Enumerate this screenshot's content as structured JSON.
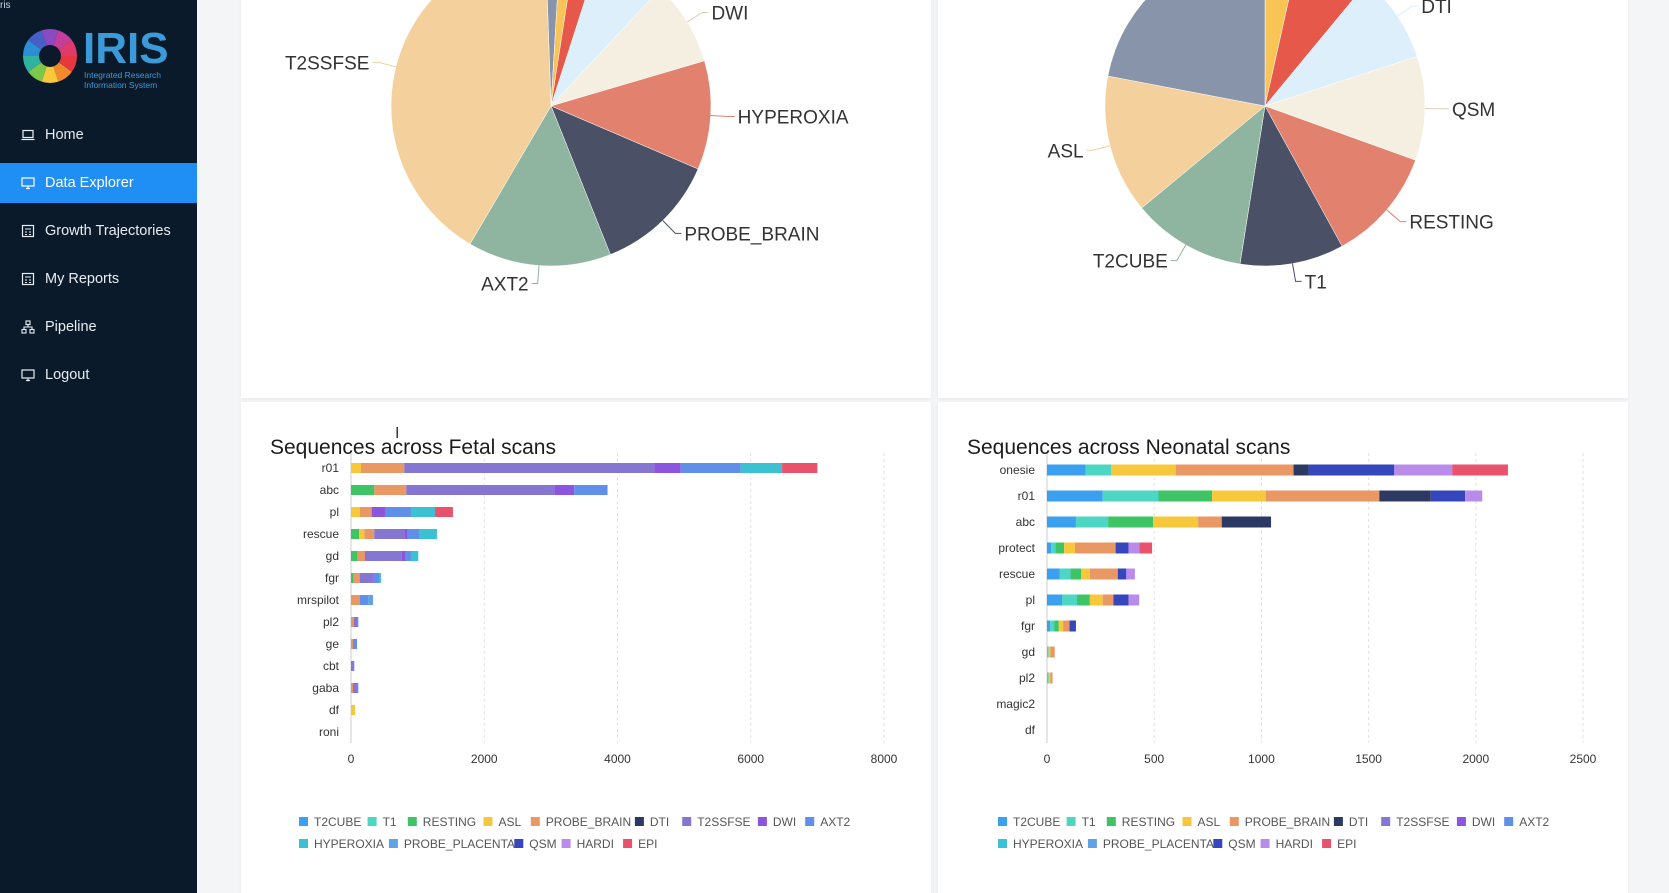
{
  "app": {
    "corner_text": "ris",
    "logo_word": "IRIS",
    "logo_tagline_1": "Integrated Research",
    "logo_tagline_2": "Information System"
  },
  "sidebar": {
    "items": [
      {
        "label": "Home",
        "icon": "laptop-icon",
        "active": false
      },
      {
        "label": "Data Explorer",
        "icon": "monitor-icon",
        "active": true
      },
      {
        "label": "Growth Trajectories",
        "icon": "calculator-icon",
        "active": false
      },
      {
        "label": "My Reports",
        "icon": "calculator-icon",
        "active": false
      },
      {
        "label": "Pipeline",
        "icon": "pipeline-icon",
        "active": false
      },
      {
        "label": "Logout",
        "icon": "monitor-icon",
        "active": false
      }
    ]
  },
  "colors": {
    "sidebar_bg": "#0a1a2a",
    "active": "#1f8ff5"
  },
  "legend_items": [
    "T2CUBE",
    "T1",
    "RESTING",
    "ASL",
    "PROBE_BRAIN",
    "DTI",
    "T2SSFSE",
    "DWI",
    "AXT2",
    "HYPEROXIA",
    "PROBE_PLACENTA",
    "QSM",
    "HARDI",
    "EPI"
  ],
  "legend_colors": [
    "#3ba0f0",
    "#4ed6c4",
    "#3fc465",
    "#f8c83c",
    "#e99763",
    "#2c3a63",
    "#8576d2",
    "#8b55e0",
    "#5f8fe8",
    "#3cc1d2",
    "#5fa2e6",
    "#3646bc",
    "#b98cec",
    "#e8526c"
  ],
  "chart_data": [
    {
      "type": "pie",
      "title": "",
      "slices": [
        {
          "label": "",
          "value": 1.5,
          "color": "#8794aa"
        },
        {
          "label": "",
          "value": 1.5,
          "color": "#f8c456"
        },
        {
          "label": "",
          "value": 2.5,
          "color": "#e5584a"
        },
        {
          "label": "",
          "value": 7,
          "color": "#dceffb"
        },
        {
          "label": "DWI",
          "value": 8.5,
          "color": "#f4efe1"
        },
        {
          "label": "HYPEROXIA",
          "value": 11,
          "color": "#e2826e"
        },
        {
          "label": "PROBE_BRAIN",
          "value": 12.5,
          "color": "#4a5065"
        },
        {
          "label": "AXT2",
          "value": 14.5,
          "color": "#8fb5a0"
        },
        {
          "label": "T2SSFSE",
          "value": 41,
          "color": "#f3d09c"
        }
      ]
    },
    {
      "type": "pie",
      "title": "",
      "slices": [
        {
          "label": "",
          "value": 3.5,
          "color": "#f8c456"
        },
        {
          "label": "",
          "value": 7.5,
          "color": "#e5584a"
        },
        {
          "label": "DTI",
          "value": 9,
          "color": "#dceffb"
        },
        {
          "label": "QSM",
          "value": 10.5,
          "color": "#f4efe1"
        },
        {
          "label": "RESTING",
          "value": 11.5,
          "color": "#e2826e"
        },
        {
          "label": "T1",
          "value": 10.5,
          "color": "#4a5065"
        },
        {
          "label": "T2CUBE",
          "value": 11.5,
          "color": "#8fb5a0"
        },
        {
          "label": "ASL",
          "value": 14,
          "color": "#f3d09c"
        },
        {
          "label": "",
          "value": 22,
          "color": "#8794aa"
        }
      ]
    },
    {
      "type": "bar",
      "title": "Sequences across Fetal scans",
      "orientation": "horizontal",
      "stacked": true,
      "categories": [
        "r01",
        "abc",
        "pl",
        "rescue",
        "gd",
        "fgr",
        "mrspilot",
        "pl2",
        "ge",
        "cbt",
        "gaba",
        "df",
        "roni"
      ],
      "xlim": [
        0,
        8000
      ],
      "xticks": [
        0,
        2000,
        4000,
        6000,
        8000
      ],
      "series": [
        {
          "name": "T2CUBE",
          "values": [
            0,
            0,
            0,
            0,
            0,
            0,
            0,
            0,
            0,
            0,
            0,
            0,
            0
          ]
        },
        {
          "name": "T1",
          "values": [
            0,
            0,
            0,
            0,
            0,
            0,
            0,
            0,
            0,
            0,
            0,
            0,
            0
          ]
        },
        {
          "name": "RESTING",
          "values": [
            0,
            350,
            0,
            120,
            100,
            40,
            0,
            0,
            0,
            0,
            0,
            0,
            0
          ]
        },
        {
          "name": "ASL",
          "values": [
            150,
            0,
            130,
            80,
            0,
            0,
            0,
            0,
            0,
            0,
            0,
            60,
            0
          ]
        },
        {
          "name": "PROBE_BRAIN",
          "values": [
            650,
            480,
            180,
            150,
            110,
            90,
            130,
            40,
            30,
            0,
            30,
            0,
            0
          ]
        },
        {
          "name": "DTI",
          "values": [
            0,
            0,
            0,
            0,
            0,
            0,
            0,
            0,
            0,
            0,
            0,
            0,
            0
          ]
        },
        {
          "name": "T2SSFSE",
          "values": [
            3750,
            2220,
            0,
            450,
            550,
            190,
            0,
            50,
            0,
            30,
            60,
            0,
            0
          ]
        },
        {
          "name": "DWI",
          "values": [
            400,
            300,
            200,
            50,
            60,
            20,
            0,
            0,
            0,
            0,
            0,
            0,
            0
          ]
        },
        {
          "name": "AXT2",
          "values": [
            900,
            500,
            390,
            180,
            80,
            90,
            130,
            20,
            60,
            20,
            20,
            0,
            0
          ]
        },
        {
          "name": "HYPEROXIA",
          "values": [
            620,
            0,
            360,
            260,
            110,
            20,
            0,
            0,
            0,
            0,
            0,
            0,
            0
          ]
        },
        {
          "name": "PROBE_PLACENTA",
          "values": [
            0,
            0,
            0,
            0,
            0,
            0,
            70,
            0,
            0,
            0,
            0,
            0,
            0
          ]
        },
        {
          "name": "QSM",
          "values": [
            0,
            0,
            0,
            0,
            0,
            0,
            0,
            0,
            0,
            0,
            0,
            0,
            0
          ]
        },
        {
          "name": "HARDI",
          "values": [
            0,
            0,
            0,
            0,
            0,
            0,
            0,
            0,
            0,
            0,
            0,
            0,
            0
          ]
        },
        {
          "name": "EPI",
          "values": [
            530,
            0,
            270,
            0,
            0,
            0,
            0,
            0,
            0,
            0,
            0,
            0,
            0
          ]
        }
      ]
    },
    {
      "type": "bar",
      "title": "Sequences across Neonatal scans",
      "orientation": "horizontal",
      "stacked": true,
      "categories": [
        "onesie",
        "r01",
        "abc",
        "protect",
        "rescue",
        "pl",
        "fgr",
        "gd",
        "pl2",
        "magic2",
        "df"
      ],
      "xlim": [
        0,
        2500
      ],
      "xticks": [
        0,
        500,
        1000,
        1500,
        2000,
        2500
      ],
      "series": [
        {
          "name": "T2CUBE",
          "values": [
            180,
            260,
            135,
            20,
            60,
            70,
            15,
            0,
            0,
            0,
            0
          ]
        },
        {
          "name": "T1",
          "values": [
            120,
            260,
            150,
            20,
            50,
            70,
            20,
            8,
            8,
            0,
            0
          ]
        },
        {
          "name": "RESTING",
          "values": [
            0,
            250,
            210,
            40,
            50,
            60,
            20,
            0,
            0,
            0,
            0
          ]
        },
        {
          "name": "ASL",
          "values": [
            300,
            250,
            210,
            50,
            40,
            60,
            20,
            8,
            8,
            0,
            0
          ]
        },
        {
          "name": "PROBE_BRAIN",
          "values": [
            550,
            530,
            110,
            190,
            130,
            50,
            30,
            20,
            10,
            0,
            0
          ]
        },
        {
          "name": "DTI",
          "values": [
            70,
            240,
            230,
            0,
            0,
            0,
            0,
            0,
            0,
            0,
            0
          ]
        },
        {
          "name": "T2SSFSE",
          "values": [
            0,
            0,
            0,
            0,
            0,
            0,
            0,
            0,
            0,
            0,
            0
          ]
        },
        {
          "name": "DWI",
          "values": [
            0,
            0,
            0,
            0,
            0,
            0,
            0,
            0,
            0,
            0,
            0
          ]
        },
        {
          "name": "AXT2",
          "values": [
            0,
            0,
            0,
            0,
            0,
            0,
            0,
            0,
            0,
            0,
            0
          ]
        },
        {
          "name": "HYPEROXIA",
          "values": [
            0,
            0,
            0,
            0,
            0,
            0,
            0,
            0,
            0,
            0,
            0
          ]
        },
        {
          "name": "PROBE_PLACENTA",
          "values": [
            0,
            0,
            0,
            0,
            0,
            0,
            0,
            0,
            0,
            0,
            0
          ]
        },
        {
          "name": "QSM",
          "values": [
            400,
            160,
            0,
            60,
            40,
            70,
            30,
            0,
            0,
            0,
            0
          ]
        },
        {
          "name": "HARDI",
          "values": [
            270,
            80,
            0,
            50,
            40,
            50,
            0,
            0,
            0,
            0,
            0
          ]
        },
        {
          "name": "EPI",
          "values": [
            260,
            0,
            0,
            60,
            0,
            0,
            0,
            0,
            0,
            0,
            0
          ]
        }
      ]
    }
  ]
}
